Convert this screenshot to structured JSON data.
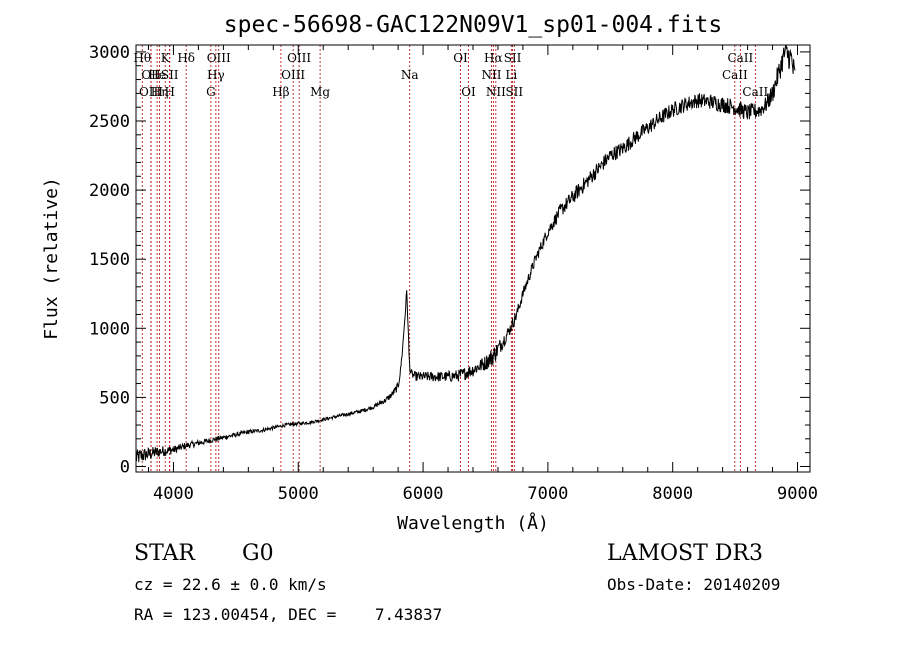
{
  "chart_data": {
    "type": "line",
    "title": "spec-56698-GAC122N09V1_sp01-004.fits",
    "xlabel": "Wavelength (Å)",
    "ylabel": "Flux (relative)",
    "xlim": [
      3700,
      9100
    ],
    "ylim": [
      -40,
      3050
    ],
    "xticks": [
      4000,
      5000,
      6000,
      7000,
      8000,
      9000
    ],
    "yticks": [
      0,
      500,
      1000,
      1500,
      2000,
      2500,
      3000
    ],
    "xtick_labels": [
      "4000",
      "5000",
      "6000",
      "7000",
      "8000",
      "9000"
    ],
    "ytick_labels": [
      "0",
      "500",
      "1000",
      "1500",
      "2000",
      "2500",
      "3000"
    ],
    "series": [
      {
        "name": "flux",
        "x": [
          3700,
          3750,
          3800,
          3850,
          3900,
          3950,
          4000,
          4100,
          4200,
          4300,
          4400,
          4500,
          4600,
          4700,
          4800,
          4900,
          5000,
          5100,
          5200,
          5300,
          5400,
          5500,
          5600,
          5700,
          5750,
          5800,
          5820,
          5840,
          5860,
          5870,
          5880,
          5890,
          5900,
          5920,
          5950,
          6000,
          6100,
          6200,
          6300,
          6400,
          6500,
          6560,
          6600,
          6650,
          6700,
          6750,
          6800,
          6900,
          7000,
          7100,
          7200,
          7300,
          7400,
          7500,
          7600,
          7700,
          7800,
          7900,
          8000,
          8100,
          8200,
          8300,
          8400,
          8500,
          8600,
          8700,
          8750,
          8800,
          8850,
          8900,
          8950,
          8980
        ],
        "y": [
          60,
          80,
          90,
          100,
          110,
          115,
          120,
          150,
          170,
          190,
          210,
          230,
          250,
          260,
          280,
          300,
          310,
          320,
          340,
          360,
          380,
          400,
          430,
          480,
          520,
          580,
          700,
          900,
          1150,
          1280,
          1000,
          750,
          680,
          660,
          650,
          650,
          650,
          650,
          660,
          700,
          750,
          800,
          850,
          920,
          1000,
          1100,
          1250,
          1500,
          1700,
          1850,
          1950,
          2050,
          2150,
          2250,
          2300,
          2380,
          2450,
          2520,
          2580,
          2620,
          2650,
          2640,
          2620,
          2600,
          2560,
          2580,
          2620,
          2700,
          2850,
          3000,
          2950,
          2800
        ],
        "noise_amplitude": [
          60,
          55,
          50,
          45,
          40,
          35,
          30,
          25,
          22,
          20,
          18,
          16,
          15,
          14,
          13,
          12,
          12,
          12,
          12,
          12,
          13,
          14,
          15,
          20,
          25,
          30,
          30,
          30,
          30,
          30,
          30,
          30,
          30,
          30,
          35,
          35,
          38,
          40,
          45,
          50,
          55,
          70,
          60,
          50,
          45,
          45,
          40,
          40,
          45,
          50,
          55,
          55,
          55,
          55,
          55,
          55,
          55,
          55,
          55,
          55,
          55,
          55,
          60,
          60,
          60,
          60,
          60,
          70,
          80,
          90,
          100,
          120
        ]
      }
    ],
    "lines": [
      {
        "wl": 3750,
        "label": "Hθ",
        "row": 0
      },
      {
        "wl": 3820,
        "label": "OII",
        "row": 1
      },
      {
        "wl": 3820,
        "label": "OIII",
        "row": 2
      },
      {
        "wl": 3869,
        "label": "He",
        "row": 1
      },
      {
        "wl": 3889,
        "label": "Hη",
        "row": 2
      },
      {
        "wl": 3934,
        "label": "K",
        "row": 0
      },
      {
        "wl": 3970,
        "label": "H",
        "row": 2
      },
      {
        "wl": 3970,
        "label": "SII",
        "row": 1
      },
      {
        "wl": 4102,
        "label": "Hδ",
        "row": 0
      },
      {
        "wl": 4300,
        "label": "G",
        "row": 2
      },
      {
        "wl": 4340,
        "label": "Hγ",
        "row": 1
      },
      {
        "wl": 4363,
        "label": "OIII",
        "row": 0
      },
      {
        "wl": 4861,
        "label": "Hβ",
        "row": 2
      },
      {
        "wl": 4959,
        "label": "OIII",
        "row": 1
      },
      {
        "wl": 5007,
        "label": "OIII",
        "row": 0
      },
      {
        "wl": 5175,
        "label": "Mg",
        "row": 2
      },
      {
        "wl": 5893,
        "label": "Na",
        "row": 1
      },
      {
        "wl": 6300,
        "label": "OI",
        "row": 0
      },
      {
        "wl": 6364,
        "label": "OI",
        "row": 2
      },
      {
        "wl": 6548,
        "label": "NII",
        "row": 1
      },
      {
        "wl": 6563,
        "label": "Hα",
        "row": 0
      },
      {
        "wl": 6583,
        "label": "NII",
        "row": 2
      },
      {
        "wl": 6707,
        "label": "Li",
        "row": 1
      },
      {
        "wl": 6717,
        "label": "SII",
        "row": 0
      },
      {
        "wl": 6731,
        "label": "SII",
        "row": 2
      },
      {
        "wl": 8498,
        "label": "CaII",
        "row": 1
      },
      {
        "wl": 8542,
        "label": "CaII",
        "row": 0
      },
      {
        "wl": 8662,
        "label": "CaII",
        "row": 2
      }
    ]
  },
  "info": {
    "class": "STAR",
    "subclass": "G0",
    "survey": "LAMOST DR3",
    "cz": "cz = 22.6 ± 0.0 km/s",
    "obs_date": "Obs-Date: 20140209",
    "coords": "RA = 123.00454, DEC =    7.43837"
  }
}
